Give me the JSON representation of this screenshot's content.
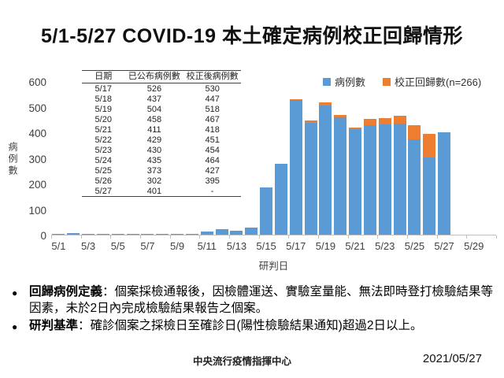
{
  "title": "5/1-5/27 COVID-19 本土確定病例校正回歸情形",
  "chart_data": {
    "type": "bar",
    "stacked": true,
    "x": [
      "5/1",
      "5/2",
      "5/3",
      "5/4",
      "5/5",
      "5/6",
      "5/7",
      "5/8",
      "5/9",
      "5/10",
      "5/11",
      "5/12",
      "5/13",
      "5/14",
      "5/15",
      "5/16",
      "5/17",
      "5/18",
      "5/19",
      "5/20",
      "5/21",
      "5/22",
      "5/23",
      "5/24",
      "5/25",
      "5/26",
      "5/27",
      "5/28",
      "5/29"
    ],
    "x_tick_step": 2,
    "xlabel": "研判日",
    "ylabel": "病例數",
    "ylim": [
      0,
      600
    ],
    "yticks": [
      0,
      100,
      200,
      300,
      400,
      500,
      600
    ],
    "grid": false,
    "legend_position": "top-right",
    "series": [
      {
        "name": "病例數",
        "color": "#5B9BD5",
        "values": [
          2,
          5,
          2,
          2,
          2,
          2,
          3,
          4,
          3,
          4,
          11,
          21,
          16,
          29,
          185,
          278,
          526,
          437,
          504,
          458,
          411,
          429,
          430,
          435,
          373,
          302,
          401,
          0,
          0
        ]
      },
      {
        "name": "校正回歸數(n=266)",
        "color": "#ED7D31",
        "values": [
          0,
          0,
          0,
          0,
          0,
          0,
          0,
          0,
          0,
          0,
          0,
          0,
          0,
          0,
          0,
          0,
          4,
          10,
          14,
          9,
          7,
          22,
          24,
          29,
          54,
          93,
          0,
          0,
          0
        ]
      }
    ]
  },
  "table": {
    "headers": [
      "日期",
      "已公布病例數",
      "校正後病例數"
    ],
    "rows": [
      [
        "5/17",
        "526",
        "530"
      ],
      [
        "5/18",
        "437",
        "447"
      ],
      [
        "5/19",
        "504",
        "518"
      ],
      [
        "5/20",
        "458",
        "467"
      ],
      [
        "5/21",
        "411",
        "418"
      ],
      [
        "5/22",
        "429",
        "451"
      ],
      [
        "5/23",
        "430",
        "454"
      ],
      [
        "5/24",
        "435",
        "464"
      ],
      [
        "5/25",
        "373",
        "427"
      ],
      [
        "5/26",
        "302",
        "395"
      ],
      [
        "5/27",
        "401",
        "-"
      ]
    ]
  },
  "notes": [
    {
      "label": "回歸病例定義",
      "text": "：個案採檢通報後，因檢體運送、實驗室量能、無法即時登打檢驗結果等因素，未於2日內完成檢驗結果報告之個案。"
    },
    {
      "label": "研判基準",
      "text": "：確診個案之採檢日至確診日(陽性檢驗結果通知)超過2日以上。"
    }
  ],
  "footer": {
    "org": "中央流行疫情指揮中心",
    "date": "2021/05/27"
  }
}
